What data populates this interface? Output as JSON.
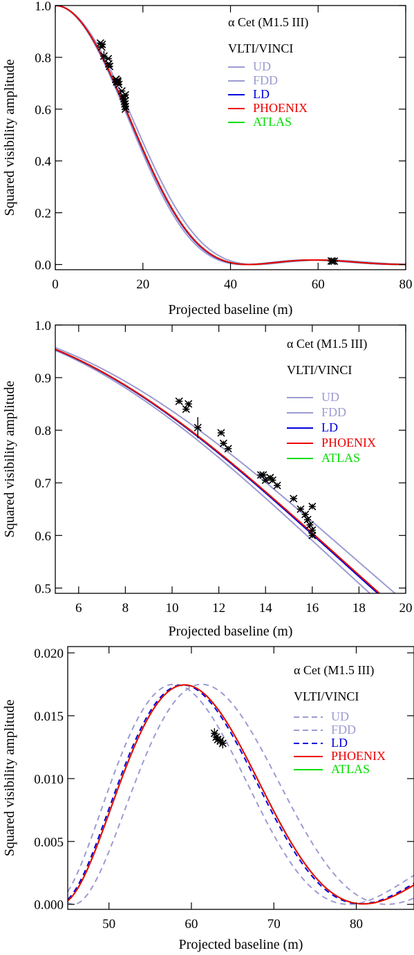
{
  "chart_data": [
    {
      "type": "line",
      "title": "",
      "xlabel": "Projected baseline (m)",
      "ylabel": "Squared visibility amplitude",
      "xlim": [
        0,
        80
      ],
      "ylim": [
        -0.02,
        1.0
      ],
      "xticks": [
        0,
        20,
        40,
        60,
        80
      ],
      "yticks": [
        0.0,
        0.2,
        0.4,
        0.6,
        0.8,
        1.0
      ],
      "xtick_labels": [
        "0",
        "20",
        "40",
        "60",
        "80"
      ],
      "ytick_labels": [
        "0.0",
        "0.2",
        "0.4",
        "0.6",
        "0.8",
        "1.0"
      ],
      "annotation_lines": [
        "α Cet (M1.5 III)",
        "VLTI/VINCI"
      ],
      "legend": [
        {
          "name": "UD",
          "color": "#9b9bd2",
          "dash": false
        },
        {
          "name": "FDD",
          "color": "#9b9bd2",
          "dash": false
        },
        {
          "name": "LD",
          "color": "#0000dd",
          "dash": false
        },
        {
          "name": "PHOENIX",
          "color": "#ee0000",
          "dash": false
        },
        {
          "name": "ATLAS",
          "color": "#00dd00",
          "dash": false
        }
      ],
      "legend_position": "top-right",
      "series": [
        {
          "name": "UD",
          "model": "ud",
          "theta": 12.0,
          "color": "#9b9bd2",
          "dash": false
        },
        {
          "name": "FDD",
          "model": "fdd",
          "theta": 12.7,
          "color": "#9b9bd2",
          "dash": false
        },
        {
          "name": "LD",
          "model": "ld",
          "theta": 12.35,
          "color": "#0000dd",
          "dash": false
        },
        {
          "name": "ATLAS",
          "model": "ld",
          "theta": 12.3,
          "color": "#00dd00",
          "dash": false
        },
        {
          "name": "PHOENIX",
          "model": "ld",
          "theta": 12.3,
          "color": "#ee0000",
          "dash": false
        }
      ],
      "measurements": {
        "x": [
          10.3,
          10.6,
          10.7,
          11.1,
          12.1,
          12.2,
          12.4,
          13.8,
          13.9,
          14.0,
          14.2,
          14.3,
          14.5,
          15.2,
          15.5,
          15.7,
          15.8,
          15.9,
          16.0,
          16.0,
          16.0,
          63.0,
          63.3,
          63.7
        ],
        "y": [
          0.855,
          0.84,
          0.85,
          0.805,
          0.795,
          0.775,
          0.765,
          0.715,
          0.715,
          0.705,
          0.71,
          0.705,
          0.695,
          0.67,
          0.65,
          0.64,
          0.63,
          0.62,
          0.655,
          0.61,
          0.6,
          0.0135,
          0.013,
          0.0128
        ],
        "err": [
          0.005,
          0.005,
          0.005,
          0.02,
          0.005,
          0.005,
          0.005,
          0.005,
          0.005,
          0.005,
          0.005,
          0.005,
          0.005,
          0.005,
          0.005,
          0.005,
          0.005,
          0.005,
          0.005,
          0.005,
          0.005,
          0.0005,
          0.0005,
          0.0005
        ]
      }
    },
    {
      "type": "line",
      "title": "",
      "xlabel": "Projected baseline (m)",
      "ylabel": "Squared visibility amplitude",
      "xlim": [
        5,
        20
      ],
      "ylim": [
        0.49,
        1.0
      ],
      "xticks": [
        6,
        8,
        10,
        12,
        14,
        16,
        18,
        20
      ],
      "yticks": [
        0.5,
        0.6,
        0.7,
        0.8,
        0.9,
        1.0
      ],
      "xtick_labels": [
        "6",
        "8",
        "10",
        "12",
        "14",
        "16",
        "18",
        "20"
      ],
      "ytick_labels": [
        "0.5",
        "0.6",
        "0.7",
        "0.8",
        "0.9",
        "1.0"
      ],
      "annotation_lines": [
        "α Cet (M1.5 III)",
        "VLTI/VINCI"
      ],
      "legend": [
        {
          "name": "UD",
          "color": "#9b9bd2",
          "dash": false
        },
        {
          "name": "FDD",
          "color": "#9b9bd2",
          "dash": false
        },
        {
          "name": "LD",
          "color": "#0000dd",
          "dash": false
        },
        {
          "name": "PHOENIX",
          "color": "#ee0000",
          "dash": false
        },
        {
          "name": "ATLAS",
          "color": "#00dd00",
          "dash": false
        }
      ],
      "legend_position": "top-right",
      "series": [
        {
          "name": "UD",
          "model": "ud",
          "theta": 12.0,
          "color": "#9b9bd2",
          "dash": false
        },
        {
          "name": "FDD",
          "model": "fdd",
          "theta": 12.7,
          "color": "#9b9bd2",
          "dash": false
        },
        {
          "name": "LD",
          "model": "ld",
          "theta": 12.35,
          "color": "#0000dd",
          "dash": false
        },
        {
          "name": "ATLAS",
          "model": "ld",
          "theta": 12.3,
          "color": "#00dd00",
          "dash": false
        },
        {
          "name": "PHOENIX",
          "model": "ld",
          "theta": 12.3,
          "color": "#ee0000",
          "dash": false
        }
      ],
      "measurements": {
        "x": [
          10.3,
          10.6,
          10.7,
          11.1,
          12.1,
          12.2,
          12.4,
          13.8,
          13.9,
          14.0,
          14.2,
          14.3,
          14.5,
          15.2,
          15.5,
          15.7,
          15.8,
          15.9,
          16.0,
          16.0,
          16.0
        ],
        "y": [
          0.855,
          0.84,
          0.85,
          0.805,
          0.795,
          0.775,
          0.765,
          0.715,
          0.715,
          0.705,
          0.71,
          0.705,
          0.695,
          0.67,
          0.65,
          0.64,
          0.63,
          0.62,
          0.655,
          0.61,
          0.6
        ],
        "err": [
          0.005,
          0.005,
          0.005,
          0.02,
          0.005,
          0.005,
          0.005,
          0.005,
          0.005,
          0.005,
          0.005,
          0.005,
          0.005,
          0.005,
          0.005,
          0.005,
          0.005,
          0.005,
          0.005,
          0.005,
          0.005
        ]
      }
    },
    {
      "type": "line",
      "title": "",
      "xlabel": "Projected baseline (m)",
      "ylabel": "Squared visibility amplitude",
      "xlim": [
        45,
        87
      ],
      "ylim": [
        -0.0004,
        0.0205
      ],
      "xticks": [
        50,
        60,
        70,
        80
      ],
      "yticks": [
        0.0,
        0.005,
        0.01,
        0.015,
        0.02
      ],
      "xtick_labels": [
        "50",
        "60",
        "70",
        "80"
      ],
      "ytick_labels": [
        "0.000",
        "0.005",
        "0.010",
        "0.015",
        "0.020"
      ],
      "annotation_lines": [
        "α Cet (M1.5 III)",
        "VLTI/VINCI"
      ],
      "legend": [
        {
          "name": "UD",
          "color": "#9b9bd2",
          "dash": true
        },
        {
          "name": "FDD",
          "color": "#9b9bd2",
          "dash": true
        },
        {
          "name": "LD",
          "color": "#0000dd",
          "dash": true
        },
        {
          "name": "PHOENIX",
          "color": "#ee0000",
          "dash": false
        },
        {
          "name": "ATLAS",
          "color": "#00dd00",
          "dash": false
        }
      ],
      "legend_position": "top-right",
      "series": [
        {
          "name": "UD",
          "model": "ud",
          "theta": 12.0,
          "color": "#9b9bd2",
          "dash": true
        },
        {
          "name": "FDD",
          "model": "fdd",
          "theta": 12.7,
          "color": "#9b9bd2",
          "dash": true
        },
        {
          "name": "LD",
          "model": "ld",
          "theta": 12.35,
          "color": "#0000dd",
          "dash": true
        },
        {
          "name": "ATLAS",
          "model": "ld",
          "theta": 12.3,
          "color": "#00dd00",
          "dash": false
        },
        {
          "name": "PHOENIX",
          "model": "ld",
          "theta": 12.3,
          "color": "#ee0000",
          "dash": false
        }
      ],
      "measurements": {
        "x": [
          62.8,
          63.0,
          63.2,
          63.5,
          63.8
        ],
        "y": [
          0.0136,
          0.0133,
          0.0131,
          0.013,
          0.0128
        ],
        "err": [
          0.0004,
          0.0004,
          0.0004,
          0.0004,
          0.0004
        ]
      }
    }
  ]
}
